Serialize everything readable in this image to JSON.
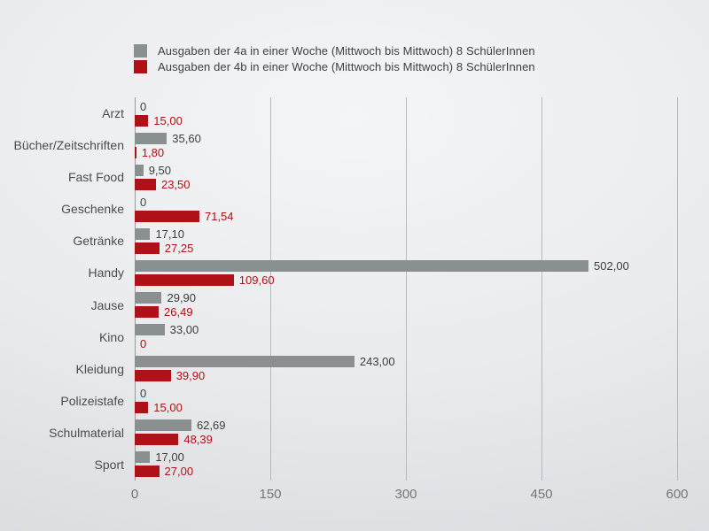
{
  "legend": {
    "items": [
      {
        "label": "Ausgaben der 4a in einer Woche (Mittwoch bis Mittwoch) 8 SchülerInnen",
        "color": "#8a908f"
      },
      {
        "label": "Ausgaben der 4b in einer Woche (Mittwoch bis Mittwoch) 8 SchülerInnen",
        "color": "#ae1116"
      }
    ]
  },
  "chart_data": {
    "type": "bar",
    "orientation": "horizontal",
    "title": "",
    "categories": [
      "Arzt",
      "Bücher/Zeitschriften",
      "Fast Food",
      "Geschenke",
      "Getränke",
      "Handy",
      "Jause",
      "Kino",
      "Kleidung",
      "Polizeistafe",
      "Schulmaterial",
      "Sport"
    ],
    "series": [
      {
        "name": "Ausgaben der 4a in einer Woche (Mittwoch bis Mittwoch) 8 SchülerInnen",
        "color": "#8a908f",
        "label_color": "#3e3e40",
        "values": [
          0,
          35.6,
          9.5,
          0,
          17.1,
          502.0,
          29.9,
          33.0,
          243.0,
          0,
          62.69,
          17.0
        ],
        "value_labels": [
          "0",
          "35,60",
          "9,50",
          "0",
          "17,10",
          "502,00",
          "29,90",
          "33,00",
          "243,00",
          "0",
          "62,69",
          "17,00"
        ]
      },
      {
        "name": "Ausgaben der 4b in einer Woche (Mittwoch bis Mittwoch) 8 SchülerInnen",
        "color": "#ae1116",
        "label_color": "#ae1116",
        "values": [
          15.0,
          1.8,
          23.5,
          71.54,
          27.25,
          109.6,
          26.49,
          0,
          39.9,
          15.0,
          48.39,
          27.0
        ],
        "value_labels": [
          "15,00",
          "1,80",
          "23,50",
          "71,54",
          "27,25",
          "109,60",
          "26,49",
          "0",
          "39,90",
          "15,00",
          "48,39",
          "27,00"
        ]
      }
    ],
    "xlim": [
      0,
      600
    ],
    "x_ticks": [
      {
        "value": 0,
        "label": "0"
      },
      {
        "value": 150,
        "label": "150"
      },
      {
        "value": 300,
        "label": "300"
      },
      {
        "value": 450,
        "label": "450"
      },
      {
        "value": 600,
        "label": "600"
      }
    ],
    "grid": true,
    "legend_position": "top"
  },
  "colors": {
    "grid_line": "#b7babc",
    "axis_line": "#97999c",
    "tick_label": "#737676",
    "category_label": "#4a4c4e",
    "background_center": "#f4f5f7",
    "background_edge": "#d6d8db"
  }
}
